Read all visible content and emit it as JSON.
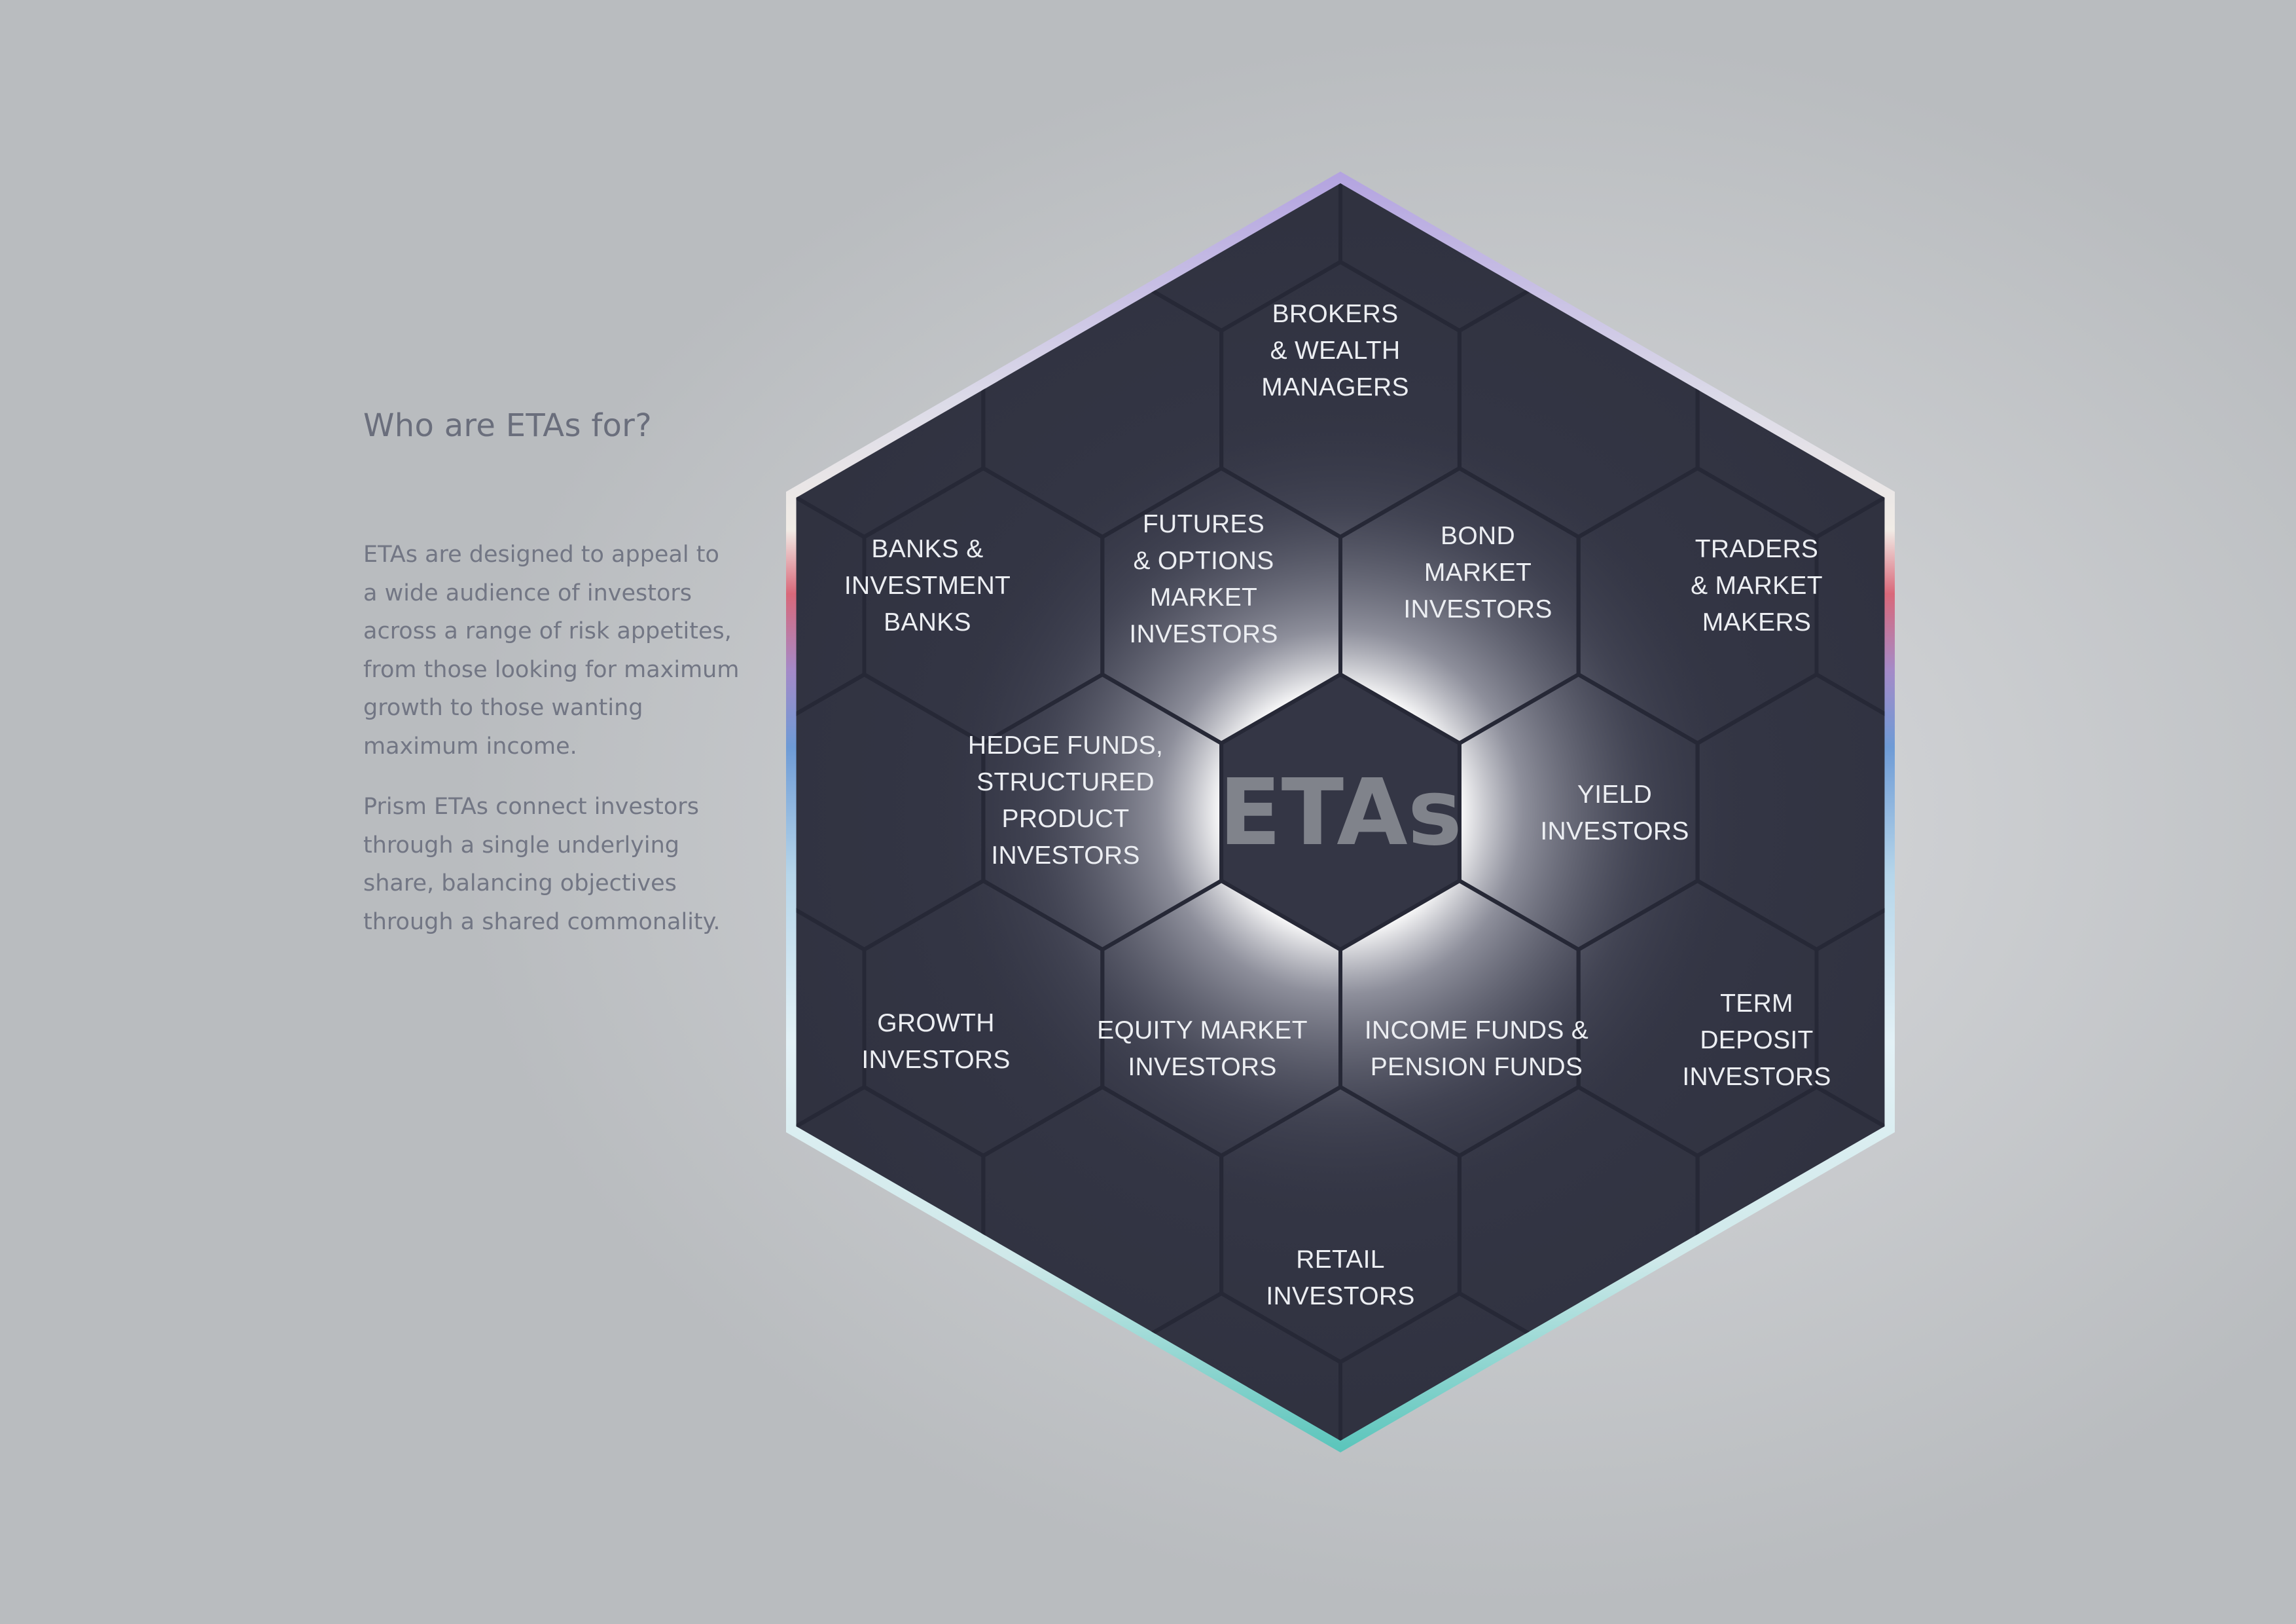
{
  "heading": "Who are ETAs for?",
  "paragraphs": [
    "ETAs are designed to appeal to\na wide audience of investors\nacross a range of risk appetites,\nfrom those looking for maximum\ngrowth to those wanting\nmaximum income.",
    "Prism ETAs connect investors\nthrough a single underlying\nshare, balancing objectives\nthrough a shared commonality."
  ],
  "diagram": {
    "center": "ETAs",
    "segments": [
      {
        "id": "brokers-wealth-managers",
        "lines": [
          "BROKERS",
          "& WEALTH",
          "MANAGERS"
        ]
      },
      {
        "id": "banks-investment-banks",
        "lines": [
          "BANKS &",
          "INVESTMENT",
          "BANKS"
        ]
      },
      {
        "id": "futures-options-market-investors",
        "lines": [
          "FUTURES",
          "& OPTIONS",
          "MARKET",
          "INVESTORS"
        ]
      },
      {
        "id": "bond-market-investors",
        "lines": [
          "BOND",
          "MARKET",
          "INVESTORS"
        ]
      },
      {
        "id": "traders-market-makers",
        "lines": [
          "TRADERS",
          "& MARKET",
          "MAKERS"
        ]
      },
      {
        "id": "hedge-funds-structured-product-investors",
        "lines": [
          "HEDGE FUNDS,",
          "STRUCTURED",
          "PRODUCT",
          "INVESTORS"
        ]
      },
      {
        "id": "yield-investors",
        "lines": [
          "YIELD",
          "INVESTORS"
        ]
      },
      {
        "id": "growth-investors",
        "lines": [
          "GROWTH",
          "INVESTORS"
        ]
      },
      {
        "id": "equity-market-investors",
        "lines": [
          "EQUITY MARKET",
          "INVESTORS"
        ]
      },
      {
        "id": "income-funds-pension-funds",
        "lines": [
          "INCOME FUNDS &",
          "PENSION FUNDS"
        ]
      },
      {
        "id": "term-deposit-investors",
        "lines": [
          "TERM",
          "DEPOSIT",
          "INVESTORS"
        ]
      },
      {
        "id": "retail-investors",
        "lines": [
          "RETAIL",
          "INVESTORS"
        ]
      }
    ],
    "colors": {
      "hex_fill": "#343645",
      "cell_line": "#262836",
      "glow": "#ffffff",
      "border_top": "#b7a8e0",
      "border_mid_red": "#d9687a",
      "border_mid_blue": "#6e9bd6",
      "border_light": "#dfeef4",
      "border_bottom": "#6cc9c0"
    }
  }
}
